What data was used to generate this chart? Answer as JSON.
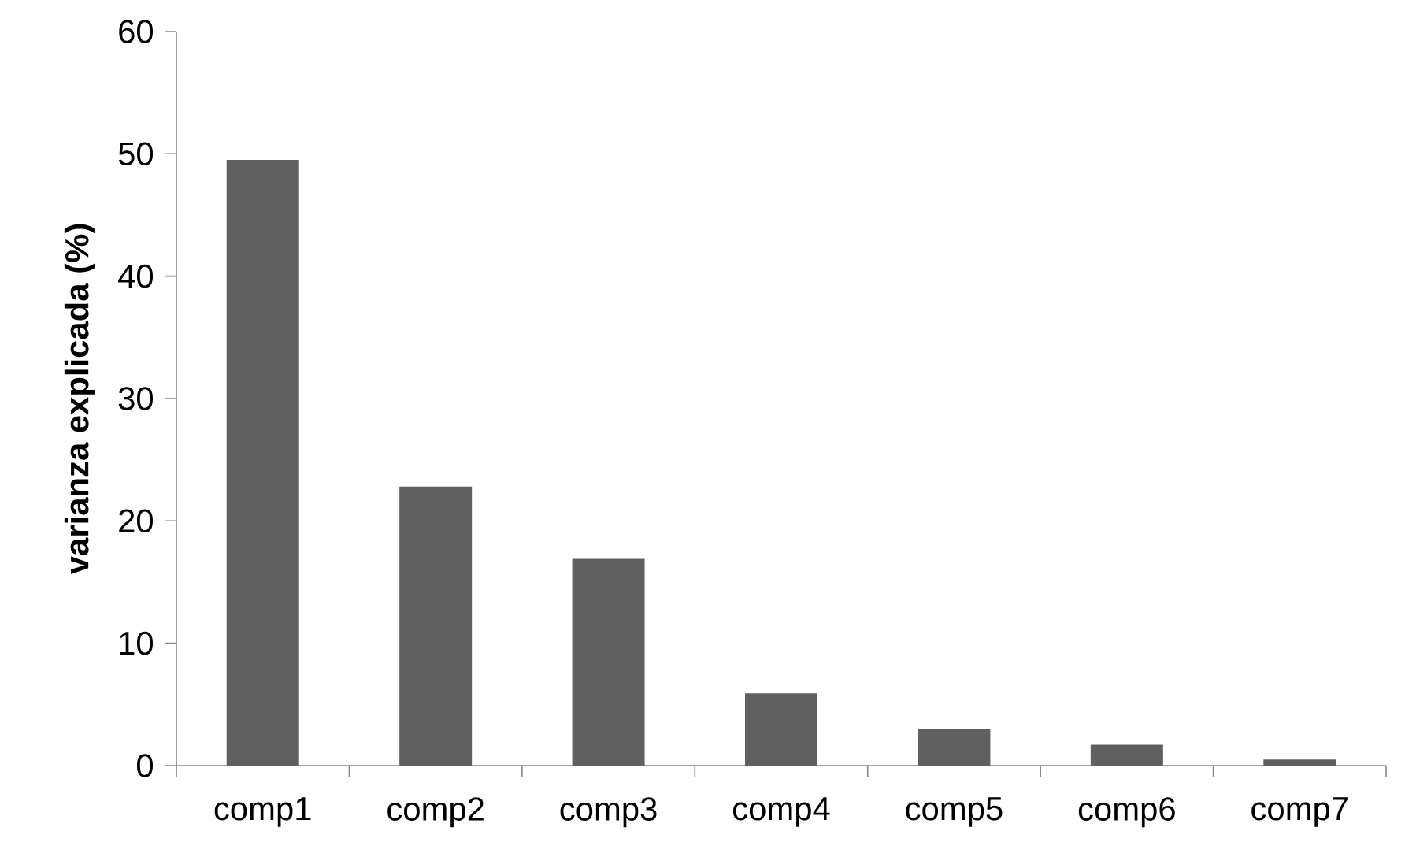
{
  "chart_data": {
    "type": "bar",
    "ylabel": "varianza explicada (%)",
    "categories": [
      "comp1",
      "comp2",
      "comp3",
      "comp4",
      "comp5",
      "comp6",
      "comp7"
    ],
    "values": [
      49.5,
      22.8,
      16.9,
      5.9,
      3.0,
      1.7,
      0.5
    ],
    "color": "#606060",
    "ylim": [
      0,
      60
    ],
    "yticks": [
      0,
      10,
      20,
      30,
      40,
      50,
      60
    ]
  }
}
